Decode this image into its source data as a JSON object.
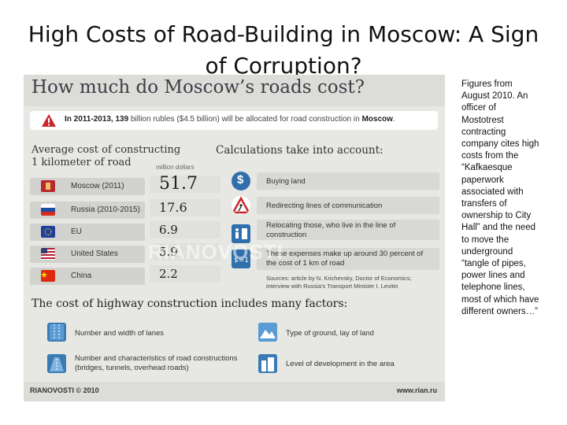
{
  "slide": {
    "title_line1": "High Costs of Road-Building in Moscow: A Sign",
    "title_line2": "of Corruption?",
    "side_text": "Figures from August 2010. An officer of Mostotrest contracting company cites high costs from the “Kafkaesque paperwork associated with transfers of ownership to City Hall” and the need to move the underground “tangle of pipes, power lines and telephone lines, most of which have different owners…”"
  },
  "infographic": {
    "title": "How much do Moscow’s roads cost?",
    "alert": {
      "bold": "In 2011-2013, 139",
      "text": " billion rubles ($4.5 billion) will be allocated for road construction in ",
      "bold2": "Moscow",
      "end": "."
    },
    "average_heading_1": "Average cost of constructing",
    "average_heading_2": "1 kilometer of road",
    "unit": "million dollars",
    "countries": [
      {
        "name": "Moscow (2011)",
        "value": "51.7",
        "flag": "moscow-flag-icon",
        "color": "#b8282e"
      },
      {
        "name": "Russia (2010-2015)",
        "value": "17.6",
        "flag": "russia-flag-icon",
        "color": "#1c4da1"
      },
      {
        "name": "EU",
        "value": "6.9",
        "flag": "eu-flag-icon",
        "color": "#1f3f9a"
      },
      {
        "name": "United States",
        "value": "5.9",
        "flag": "usa-flag-icon",
        "color": "#b22234"
      },
      {
        "name": "China",
        "value": "2.2",
        "flag": "china-flag-icon",
        "color": "#de2910"
      }
    ],
    "calc_heading": "Calculations take into account:",
    "factors": [
      {
        "text": "Buying land",
        "icon": "dollar-icon"
      },
      {
        "text": "Redirecting lines of communication",
        "icon": "road-works-icon"
      },
      {
        "text": "Relocating those, who live in the line of construction",
        "icon": "relocation-icon"
      },
      {
        "text": "These expenses make up around 30 percent of the cost of 1 km of road",
        "icon": "cost-icon"
      }
    ],
    "sources_line1": "Sources: article by N. Krichevsky, Doctor of Economics;",
    "sources_line2": "interview with Russia’s Transport Minister I. Levitin",
    "highway_heading": "The cost of highway construction includes many factors:",
    "highway_factors": [
      {
        "text": "Number and width of lanes",
        "icon": "lanes-icon"
      },
      {
        "text": "Type of ground, lay of land",
        "icon": "terrain-icon"
      },
      {
        "text": "Number and characteristics of road constructions (bridges, tunnels, overhead roads)",
        "icon": "overpass-icon"
      },
      {
        "text": "Level of development in the area",
        "icon": "buildings-icon"
      }
    ],
    "footer_left": "RIANOVOSTI © 2010",
    "footer_right": "www.rian.ru",
    "watermark": "RIANOVOSTI"
  }
}
